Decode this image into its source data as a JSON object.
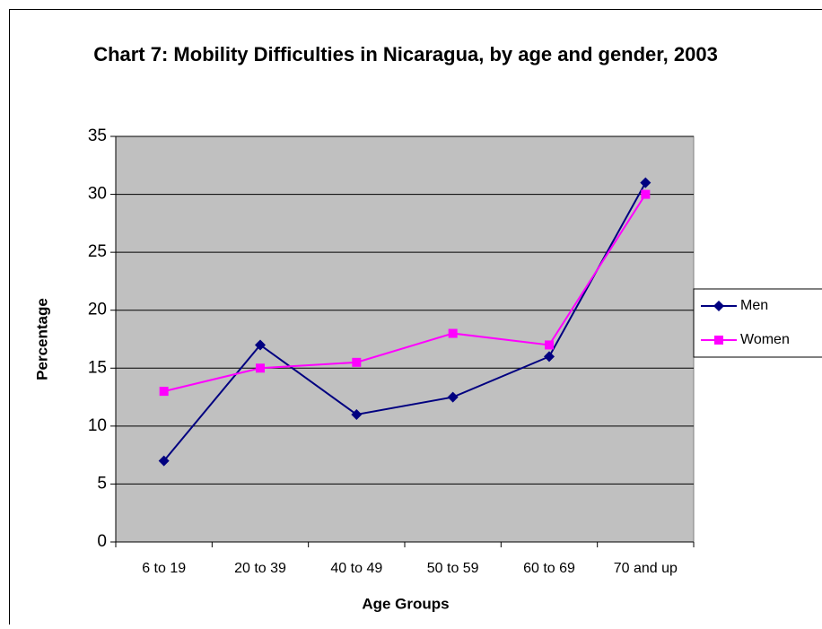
{
  "chart_data": {
    "type": "line",
    "title": "Chart 7: Mobility Difficulties in Nicaragua, by age and gender, 2003",
    "x_label": "Age Groups",
    "y_label": "Percentage",
    "categories": [
      "6 to 19",
      "20 to 39",
      "40 to 49",
      "50 to 59",
      "60 to 69",
      "70 and up"
    ],
    "series": [
      {
        "name": "Men",
        "color": "#000080",
        "marker": "diamond",
        "values": [
          7,
          17,
          11,
          12.5,
          16,
          31
        ]
      },
      {
        "name": "Women",
        "color": "#ff00ff",
        "marker": "square",
        "values": [
          13,
          15,
          15.5,
          18,
          17,
          30
        ]
      }
    ],
    "ylim": [
      0,
      35
    ],
    "yticks": [
      0,
      5,
      10,
      15,
      20,
      25,
      30,
      35
    ],
    "grid": true,
    "legend": "right"
  }
}
